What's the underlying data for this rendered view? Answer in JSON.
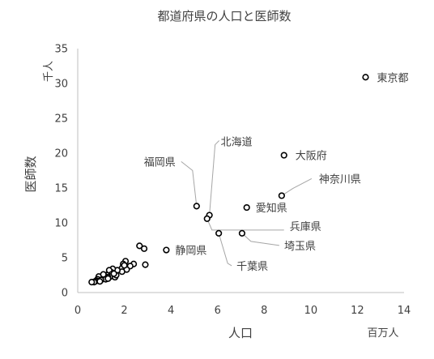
{
  "chart_data": {
    "type": "scatter",
    "title": "都道府県の人口と医師数",
    "xlabel": "人口",
    "x_unit": "百万人",
    "ylabel": "医師数",
    "y_unit": "千人",
    "xlim": [
      0,
      14
    ],
    "ylim": [
      0,
      35
    ],
    "x_ticks": [
      0,
      2,
      4,
      6,
      8,
      10,
      12,
      14
    ],
    "y_ticks": [
      0,
      5,
      10,
      15,
      20,
      25,
      30,
      35
    ],
    "grid": false,
    "legend": "none",
    "marker": "open-circle",
    "colors": {
      "marker": "#000000",
      "axis": "#bfbfbf",
      "text": "#404040",
      "leader": "#a6a6a6"
    },
    "points": [
      {
        "x": 12.35,
        "y": 30.9,
        "label": "東京都"
      },
      {
        "x": 8.85,
        "y": 19.7,
        "label": "大阪府"
      },
      {
        "x": 8.75,
        "y": 13.9,
        "label": "神奈川県"
      },
      {
        "x": 7.25,
        "y": 12.2,
        "label": "愛知県"
      },
      {
        "x": 5.1,
        "y": 12.4,
        "label": "福岡県"
      },
      {
        "x": 5.65,
        "y": 11.1,
        "label": "北海道"
      },
      {
        "x": 5.55,
        "y": 10.6,
        "label": "兵庫県"
      },
      {
        "x": 7.05,
        "y": 8.5,
        "label": "埼玉県"
      },
      {
        "x": 6.05,
        "y": 8.5,
        "label": "千葉県"
      },
      {
        "x": 3.8,
        "y": 6.1,
        "label": "静岡県"
      },
      {
        "x": 2.65,
        "y": 6.7
      },
      {
        "x": 2.85,
        "y": 6.3
      },
      {
        "x": 2.9,
        "y": 4.0
      },
      {
        "x": 2.4,
        "y": 4.1
      },
      {
        "x": 2.25,
        "y": 3.8
      },
      {
        "x": 2.05,
        "y": 4.5
      },
      {
        "x": 1.95,
        "y": 4.1
      },
      {
        "x": 1.9,
        "y": 3.5
      },
      {
        "x": 2.1,
        "y": 3.3
      },
      {
        "x": 1.9,
        "y": 3.0
      },
      {
        "x": 1.7,
        "y": 3.2
      },
      {
        "x": 1.5,
        "y": 3.4
      },
      {
        "x": 1.45,
        "y": 2.9
      },
      {
        "x": 1.35,
        "y": 3.2
      },
      {
        "x": 1.45,
        "y": 2.6
      },
      {
        "x": 1.4,
        "y": 2.3
      },
      {
        "x": 1.25,
        "y": 2.5
      },
      {
        "x": 1.3,
        "y": 2.2
      },
      {
        "x": 1.15,
        "y": 2.4
      },
      {
        "x": 1.1,
        "y": 2.1
      },
      {
        "x": 1.05,
        "y": 2.3
      },
      {
        "x": 0.95,
        "y": 2.0
      },
      {
        "x": 0.9,
        "y": 2.3
      },
      {
        "x": 0.85,
        "y": 1.9
      },
      {
        "x": 0.8,
        "y": 1.7
      },
      {
        "x": 0.75,
        "y": 1.6
      },
      {
        "x": 0.7,
        "y": 1.5
      },
      {
        "x": 0.6,
        "y": 1.5
      },
      {
        "x": 1.2,
        "y": 1.9
      },
      {
        "x": 1.0,
        "y": 1.8
      },
      {
        "x": 1.6,
        "y": 2.2
      },
      {
        "x": 1.65,
        "y": 2.5
      },
      {
        "x": 0.95,
        "y": 1.6
      },
      {
        "x": 1.1,
        "y": 2.6
      },
      {
        "x": 2.0,
        "y": 3.9
      },
      {
        "x": 1.55,
        "y": 2.7
      },
      {
        "x": 1.3,
        "y": 2.0
      }
    ]
  }
}
